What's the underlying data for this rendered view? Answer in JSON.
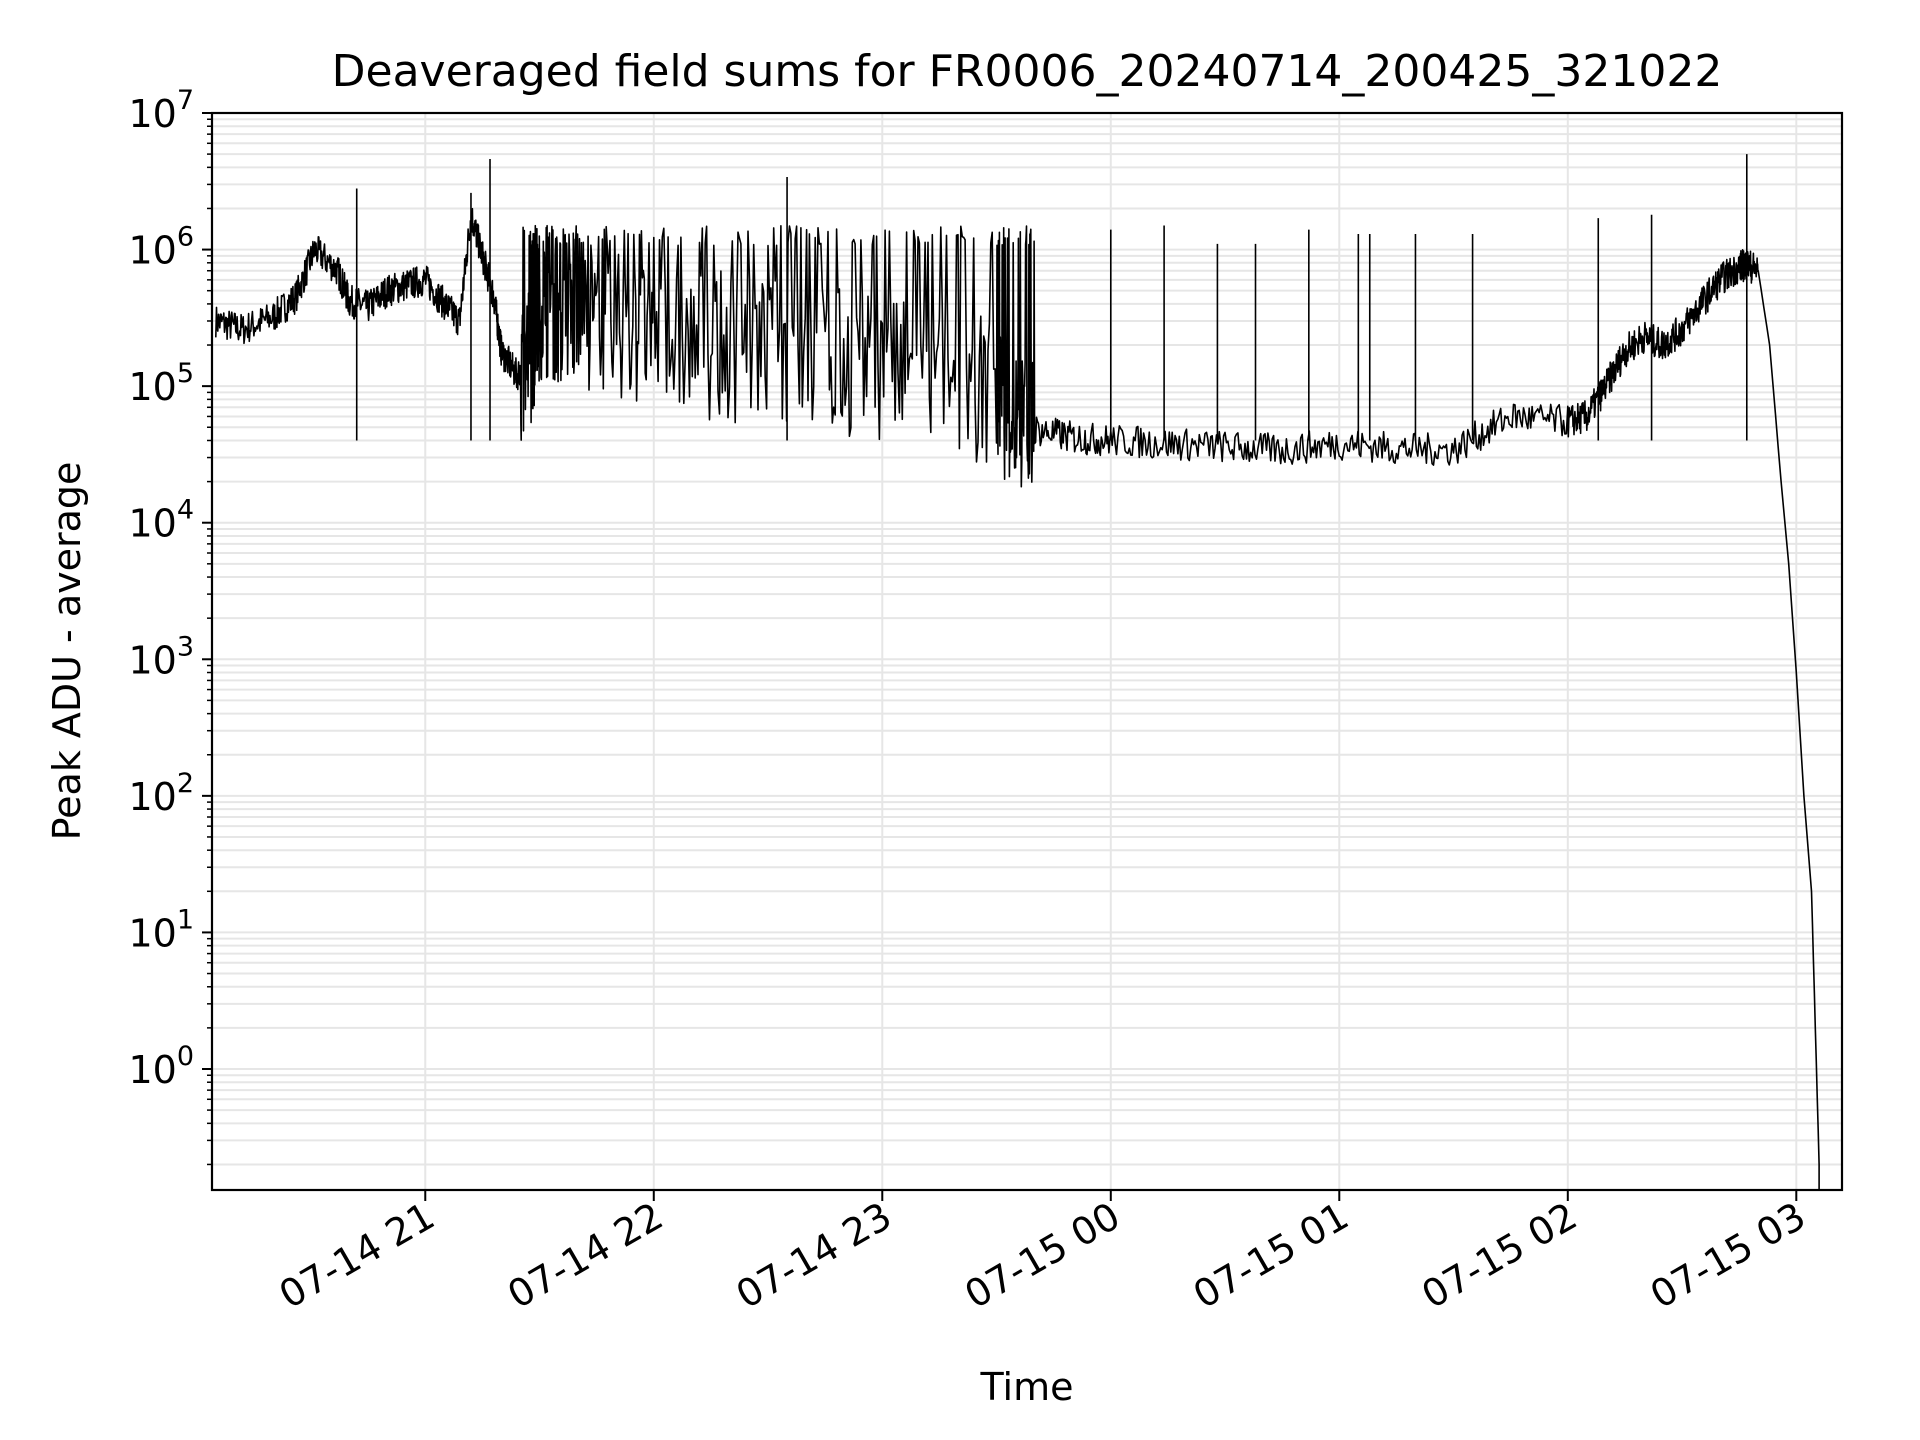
{
  "chart_data": {
    "type": "line",
    "title": "Deaveraged field sums for FR0006_20240714_200425_321022",
    "xlabel": "Time",
    "ylabel": "Peak ADU - average",
    "x_range": [
      "2024-07-14 20:04",
      "2024-07-15 03:12"
    ],
    "ylim": [
      0.13,
      10000000
    ],
    "y_scale": "log",
    "grid": true,
    "x_ticks": [
      {
        "label": "07-14 21",
        "time": "2024-07-14 21:00"
      },
      {
        "label": "07-14 22",
        "time": "2024-07-14 22:00"
      },
      {
        "label": "07-14 23",
        "time": "2024-07-14 23:00"
      },
      {
        "label": "07-15 00",
        "time": "2024-07-15 00:00"
      },
      {
        "label": "07-15 01",
        "time": "2024-07-15 01:00"
      },
      {
        "label": "07-15 02",
        "time": "2024-07-15 02:00"
      },
      {
        "label": "07-15 03",
        "time": "2024-07-15 03:00"
      }
    ],
    "y_ticks": [
      {
        "base": "10",
        "exp": "0",
        "value": 1
      },
      {
        "base": "10",
        "exp": "1",
        "value": 10
      },
      {
        "base": "10",
        "exp": "2",
        "value": 100
      },
      {
        "base": "10",
        "exp": "3",
        "value": 1000
      },
      {
        "base": "10",
        "exp": "4",
        "value": 10000
      },
      {
        "base": "10",
        "exp": "5",
        "value": 100000
      },
      {
        "base": "10",
        "exp": "6",
        "value": 1000000
      },
      {
        "base": "10",
        "exp": "7",
        "value": 10000000
      }
    ],
    "line_color": "#000000",
    "grid_color": "#e6e6e6",
    "series": [
      {
        "x": [
          "2024-07-14 20:05",
          "2024-07-14 20:12",
          "2024-07-14 20:20",
          "2024-07-14 20:26",
          "2024-07-14 20:31",
          "2024-07-14 20:37",
          "2024-07-14 20:40",
          "2024-07-14 20:45",
          "2024-07-14 20:50",
          "2024-07-14 20:55",
          "2024-07-14 21:00",
          "2024-07-14 21:05",
          "2024-07-14 21:09",
          "2024-07-14 21:12",
          "2024-07-14 21:15",
          "2024-07-14 21:18",
          "2024-07-14 21:20",
          "2024-07-14 21:24",
          "2024-07-14 21:28",
          "2024-07-14 21:30",
          "2024-07-14 21:35",
          "2024-07-14 21:40",
          "2024-07-14 21:50",
          "2024-07-14 22:00",
          "2024-07-14 22:15",
          "2024-07-14 22:30",
          "2024-07-14 22:45",
          "2024-07-14 23:00",
          "2024-07-14 23:15",
          "2024-07-14 23:30",
          "2024-07-14 23:35",
          "2024-07-14 23:40",
          "2024-07-14 23:50",
          "2024-07-15 00:00",
          "2024-07-15 00:15",
          "2024-07-15 00:30",
          "2024-07-15 00:45",
          "2024-07-15 01:00",
          "2024-07-15 01:15",
          "2024-07-15 01:30",
          "2024-07-15 01:45",
          "2024-07-15 02:00",
          "2024-07-15 02:05",
          "2024-07-15 02:10",
          "2024-07-15 02:15",
          "2024-07-15 02:20",
          "2024-07-15 02:25",
          "2024-07-15 02:30",
          "2024-07-15 02:35",
          "2024-07-15 02:40",
          "2024-07-15 02:45",
          "2024-07-15 02:47",
          "2024-07-15 02:50",
          "2024-07-15 02:53",
          "2024-07-15 02:56",
          "2024-07-15 02:58",
          "2024-07-15 03:00",
          "2024-07-15 03:02",
          "2024-07-15 03:04",
          "2024-07-15 03:05",
          "2024-07-15 03:06"
        ],
        "y": [
          300000,
          260000,
          320000,
          450000,
          1000000,
          700000,
          420000,
          380000,
          500000,
          550000,
          600000,
          400000,
          300000,
          1800000,
          900000,
          450000,
          180000,
          120000,
          180000,
          400000,
          350000,
          300000,
          280000,
          220000,
          200000,
          180000,
          160000,
          130000,
          110000,
          90000,
          55000,
          48000,
          42000,
          40000,
          38000,
          36000,
          34000,
          38000,
          35000,
          34000,
          60000,
          55000,
          60000,
          100000,
          180000,
          230000,
          200000,
          260000,
          400000,
          600000,
          750000,
          780000,
          700000,
          200000,
          20000,
          5000,
          800,
          100,
          20,
          2,
          0.2
        ]
      }
    ],
    "spikes": [
      {
        "x": "2024-07-14 20:42",
        "peak": 2800000
      },
      {
        "x": "2024-07-14 21:12",
        "peak": 2600000
      },
      {
        "x": "2024-07-14 21:17",
        "peak": 4600000
      },
      {
        "x": "2024-07-14 22:35",
        "peak": 3400000
      },
      {
        "x": "2024-07-15 00:00",
        "peak": 1400000
      },
      {
        "x": "2024-07-15 00:14",
        "peak": 1500000
      },
      {
        "x": "2024-07-15 00:28",
        "peak": 1100000
      },
      {
        "x": "2024-07-15 00:38",
        "peak": 1100000
      },
      {
        "x": "2024-07-15 00:52",
        "peak": 1400000
      },
      {
        "x": "2024-07-15 01:05",
        "peak": 1300000
      },
      {
        "x": "2024-07-15 01:08",
        "peak": 1300000
      },
      {
        "x": "2024-07-15 01:20",
        "peak": 1300000
      },
      {
        "x": "2024-07-15 01:35",
        "peak": 1300000
      },
      {
        "x": "2024-07-15 02:08",
        "peak": 1700000
      },
      {
        "x": "2024-07-15 02:22",
        "peak": 1800000
      },
      {
        "x": "2024-07-15 02:47",
        "peak": 5000000
      }
    ]
  }
}
